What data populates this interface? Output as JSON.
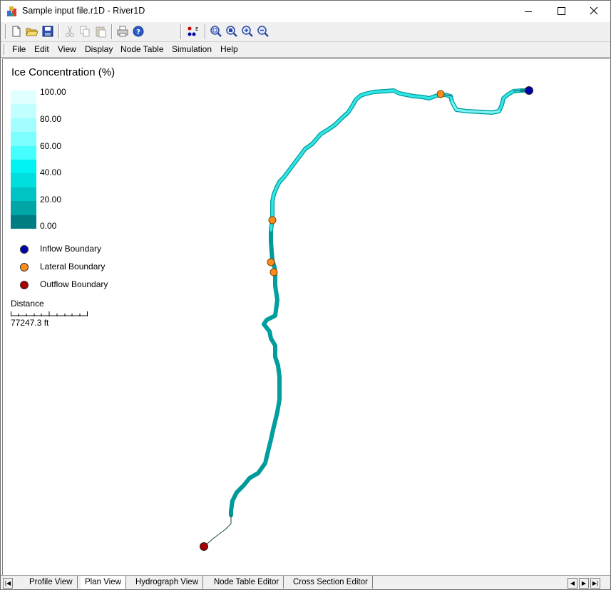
{
  "window": {
    "title": "Sample input file.r1D - River1D"
  },
  "toolbar": {
    "buttons": [
      "new-file-icon",
      "open-folder-icon",
      "save-icon",
      "cut-icon",
      "copy-icon",
      "paste-icon",
      "print-icon",
      "help-icon",
      "node-edit-icon",
      "zoom-extents-icon",
      "zoom-window-icon",
      "zoom-in-icon",
      "zoom-out-icon"
    ]
  },
  "menu": {
    "items": [
      "File",
      "Edit",
      "View",
      "Display",
      "Node Table",
      "Simulation",
      "Help"
    ]
  },
  "legend": {
    "title": "Ice Concentration (%)",
    "ticks": [
      "100.00",
      "80.00",
      "60.00",
      "40.00",
      "20.00",
      "0.00"
    ],
    "colors": [
      "#e0ffff",
      "#c2ffff",
      "#a3ffff",
      "#7dffff",
      "#45ffff",
      "#00f2f2",
      "#00dede",
      "#00c4c4",
      "#00a5a5",
      "#007d82"
    ],
    "boundaries": [
      {
        "label": "Inflow Boundary",
        "color": "#0000aa"
      },
      {
        "label": "Lateral Boundary",
        "color": "#ff8c1a"
      },
      {
        "label": "Outflow Boundary",
        "color": "#aa0000"
      }
    ],
    "distance_label": "Distance",
    "distance_value": "77247.3 ft"
  },
  "tabs": {
    "items": [
      "Profile View",
      "Plan View",
      "Hydrograph View",
      "Node Table Editor",
      "Cross Section Editor"
    ],
    "active": "Plan View"
  }
}
